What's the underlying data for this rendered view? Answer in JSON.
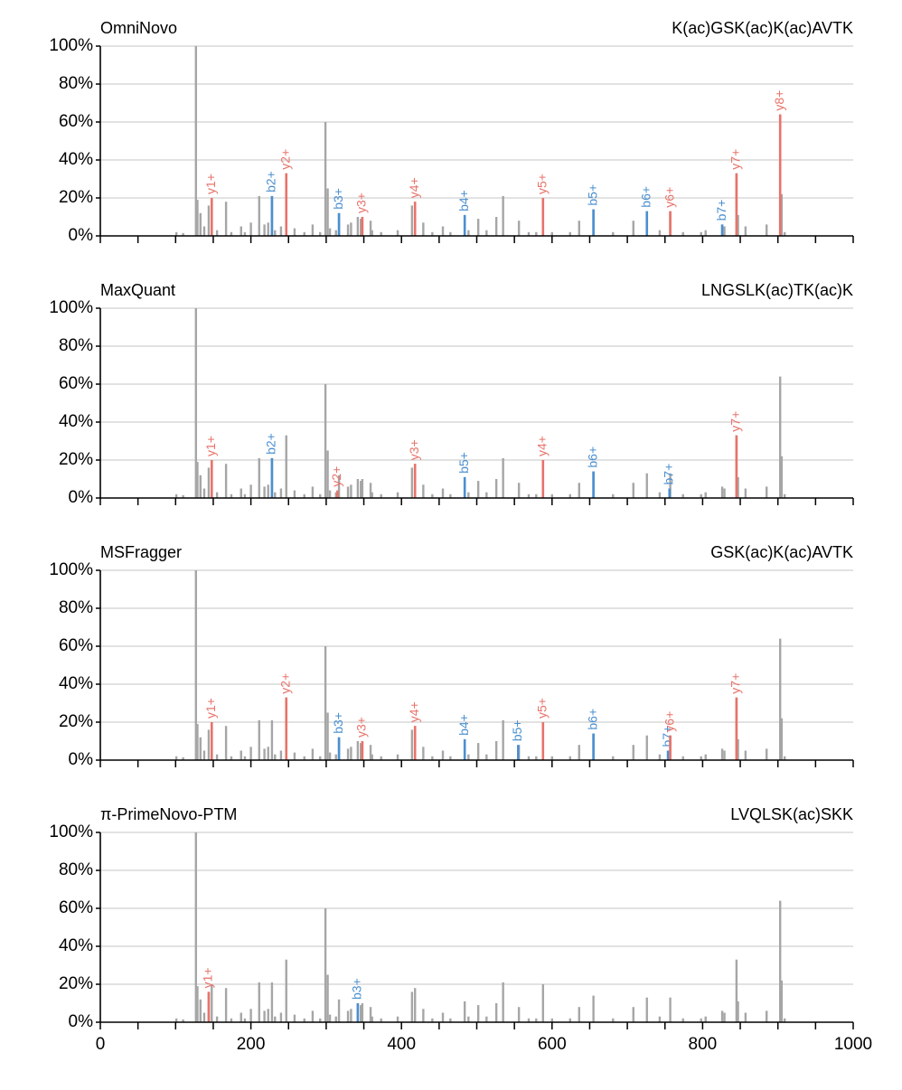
{
  "chart_data": [
    {
      "type": "bar",
      "title": "OmniNovo",
      "subtitle": "K(ac)GSK(ac)K(ac)AVTK",
      "xlim": [
        0,
        1000
      ],
      "ylim": [
        0,
        100
      ],
      "yticks": [
        {
          "value": 0,
          "label": "0%"
        },
        {
          "value": 20,
          "label": "20%"
        },
        {
          "value": 40,
          "label": "40%"
        },
        {
          "value": 60,
          "label": "60%"
        },
        {
          "value": 80,
          "label": "80%"
        },
        {
          "value": 100,
          "label": "100%"
        }
      ],
      "xticks": [
        0,
        200,
        400,
        600,
        800,
        1000
      ],
      "xminor": [
        50,
        100,
        150,
        250,
        300,
        350,
        450,
        500,
        550,
        650,
        700,
        750,
        850,
        900,
        950
      ],
      "xtick_labels": false,
      "grid": true,
      "color": "#a6a6a6",
      "x": [
        101,
        110,
        127,
        129,
        133,
        138,
        144,
        148,
        155,
        167,
        174,
        187,
        192,
        200,
        211,
        218,
        223,
        228,
        232,
        240,
        247,
        258,
        271,
        282,
        292,
        299,
        302,
        305,
        313,
        317,
        329,
        333,
        342,
        346,
        348,
        359,
        361,
        373,
        395,
        414,
        418,
        429,
        441,
        455,
        465,
        484,
        489,
        502,
        513,
        526,
        535,
        556,
        569,
        579,
        588,
        600,
        624,
        636,
        655,
        681,
        708,
        726,
        743,
        757,
        774,
        798,
        804,
        826,
        829,
        845,
        847,
        857,
        885,
        903,
        905,
        909
      ],
      "values": [
        2,
        1.5,
        100,
        19,
        12,
        5,
        16,
        20,
        3,
        18,
        2,
        5,
        2,
        7,
        21,
        6,
        7,
        21,
        3,
        5,
        33,
        4,
        2,
        6,
        2,
        60,
        25,
        4,
        3,
        12,
        6,
        7,
        10,
        9,
        10,
        8,
        3,
        2,
        3,
        16,
        18,
        7,
        2,
        5,
        2,
        11,
        3,
        9,
        3,
        10,
        21,
        8,
        2,
        2,
        20,
        2,
        2,
        8,
        14,
        2,
        8,
        13,
        3,
        13,
        2,
        2,
        3,
        6,
        5,
        33,
        11,
        5,
        6,
        64,
        22,
        2
      ],
      "annotations": [
        {
          "x": 148,
          "value": 20,
          "label": "y1+",
          "color": "#e8736a"
        },
        {
          "x": 228,
          "value": 21,
          "label": "b2+",
          "color": "#4a8fd0"
        },
        {
          "x": 247,
          "value": 33,
          "label": "y2+",
          "color": "#e8736a"
        },
        {
          "x": 317,
          "value": 12,
          "label": "b3+",
          "color": "#4a8fd0"
        },
        {
          "x": 348,
          "value": 10,
          "label": "y3+",
          "color": "#e8736a"
        },
        {
          "x": 418,
          "value": 18,
          "label": "y4+",
          "color": "#e8736a"
        },
        {
          "x": 484,
          "value": 11,
          "label": "b4+",
          "color": "#4a8fd0"
        },
        {
          "x": 588,
          "value": 20,
          "label": "y5+",
          "color": "#e8736a"
        },
        {
          "x": 655,
          "value": 14,
          "label": "b5+",
          "color": "#4a8fd0"
        },
        {
          "x": 726,
          "value": 13,
          "label": "b6+",
          "color": "#4a8fd0"
        },
        {
          "x": 757,
          "value": 13,
          "label": "y6+",
          "color": "#e8736a"
        },
        {
          "x": 826,
          "value": 6,
          "label": "b7+",
          "color": "#4a8fd0"
        },
        {
          "x": 845,
          "value": 33,
          "label": "y7+",
          "color": "#e8736a"
        },
        {
          "x": 903,
          "value": 64,
          "label": "y8+",
          "color": "#e8736a"
        }
      ]
    },
    {
      "type": "bar",
      "title": "MaxQuant",
      "subtitle": "LNGSLK(ac)TK(ac)K",
      "xlim": [
        0,
        1000
      ],
      "ylim": [
        0,
        100
      ],
      "yticks": [
        {
          "value": 0,
          "label": "0%"
        },
        {
          "value": 20,
          "label": "20%"
        },
        {
          "value": 40,
          "label": "40%"
        },
        {
          "value": 60,
          "label": "60%"
        },
        {
          "value": 80,
          "label": "80%"
        },
        {
          "value": 100,
          "label": "100%"
        }
      ],
      "xticks": [
        0,
        200,
        400,
        600,
        800,
        1000
      ],
      "xminor": [
        50,
        100,
        150,
        250,
        300,
        350,
        450,
        500,
        550,
        650,
        700,
        750,
        850,
        900,
        950
      ],
      "xtick_labels": false,
      "grid": true,
      "color": "#a6a6a6",
      "x": [
        101,
        110,
        127,
        129,
        133,
        138,
        144,
        148,
        155,
        167,
        174,
        187,
        192,
        200,
        211,
        218,
        223,
        228,
        232,
        240,
        247,
        258,
        271,
        282,
        292,
        299,
        302,
        305,
        313,
        317,
        329,
        333,
        342,
        346,
        348,
        359,
        361,
        373,
        395,
        414,
        418,
        429,
        441,
        455,
        465,
        484,
        489,
        502,
        513,
        526,
        535,
        556,
        569,
        579,
        588,
        600,
        624,
        636,
        655,
        681,
        708,
        726,
        743,
        757,
        774,
        798,
        804,
        826,
        829,
        845,
        847,
        857,
        885,
        903,
        905,
        909
      ],
      "values": [
        2,
        1.5,
        100,
        19,
        12,
        5,
        16,
        20,
        3,
        18,
        2,
        5,
        2,
        7,
        21,
        6,
        7,
        21,
        3,
        5,
        33,
        4,
        2,
        6,
        2,
        60,
        25,
        4,
        3,
        12,
        6,
        7,
        10,
        9,
        10,
        8,
        3,
        2,
        3,
        16,
        18,
        7,
        2,
        5,
        2,
        11,
        3,
        9,
        3,
        10,
        21,
        8,
        2,
        2,
        20,
        2,
        2,
        8,
        14,
        2,
        8,
        13,
        3,
        13,
        2,
        2,
        3,
        6,
        5,
        33,
        11,
        5,
        6,
        64,
        22,
        2
      ],
      "annotations": [
        {
          "x": 148,
          "value": 20,
          "label": "y1+",
          "color": "#e8736a"
        },
        {
          "x": 228,
          "value": 21,
          "label": "b2+",
          "color": "#4a8fd0"
        },
        {
          "x": 315,
          "value": 4,
          "label": "y2+",
          "color": "#e8736a"
        },
        {
          "x": 418,
          "value": 18,
          "label": "y3+",
          "color": "#e8736a"
        },
        {
          "x": 484,
          "value": 11,
          "label": "b5+",
          "color": "#4a8fd0"
        },
        {
          "x": 588,
          "value": 20,
          "label": "y4+",
          "color": "#e8736a"
        },
        {
          "x": 655,
          "value": 14,
          "label": "b6+",
          "color": "#4a8fd0"
        },
        {
          "x": 756,
          "value": 5,
          "label": "b7+",
          "color": "#4a8fd0"
        },
        {
          "x": 845,
          "value": 33,
          "label": "y7+",
          "color": "#e8736a"
        }
      ]
    },
    {
      "type": "bar",
      "title": "MSFragger",
      "subtitle": "GSK(ac)K(ac)AVTK",
      "xlim": [
        0,
        1000
      ],
      "ylim": [
        0,
        100
      ],
      "yticks": [
        {
          "value": 0,
          "label": "0%"
        },
        {
          "value": 20,
          "label": "20%"
        },
        {
          "value": 40,
          "label": "40%"
        },
        {
          "value": 60,
          "label": "60%"
        },
        {
          "value": 80,
          "label": "80%"
        },
        {
          "value": 100,
          "label": "100%"
        }
      ],
      "xticks": [
        0,
        200,
        400,
        600,
        800,
        1000
      ],
      "xminor": [
        50,
        100,
        150,
        250,
        300,
        350,
        450,
        500,
        550,
        650,
        700,
        750,
        850,
        900,
        950
      ],
      "xtick_labels": false,
      "grid": true,
      "color": "#a6a6a6",
      "x": [
        101,
        110,
        127,
        129,
        133,
        138,
        144,
        148,
        155,
        167,
        174,
        187,
        192,
        200,
        211,
        218,
        223,
        228,
        232,
        240,
        247,
        258,
        271,
        282,
        292,
        299,
        302,
        305,
        313,
        317,
        329,
        333,
        342,
        346,
        348,
        359,
        361,
        373,
        395,
        414,
        418,
        429,
        441,
        455,
        465,
        484,
        489,
        502,
        513,
        526,
        535,
        556,
        569,
        579,
        588,
        600,
        624,
        636,
        655,
        681,
        708,
        726,
        743,
        757,
        774,
        798,
        804,
        826,
        829,
        845,
        847,
        857,
        885,
        903,
        905,
        909
      ],
      "values": [
        2,
        1.5,
        100,
        19,
        12,
        5,
        16,
        20,
        3,
        18,
        2,
        5,
        2,
        7,
        21,
        6,
        7,
        21,
        3,
        5,
        33,
        4,
        2,
        6,
        2,
        60,
        25,
        4,
        3,
        12,
        6,
        7,
        10,
        9,
        10,
        8,
        3,
        2,
        3,
        16,
        18,
        7,
        2,
        5,
        2,
        11,
        3,
        9,
        3,
        10,
        21,
        8,
        2,
        2,
        20,
        2,
        2,
        8,
        14,
        2,
        8,
        13,
        3,
        13,
        2,
        2,
        3,
        6,
        5,
        33,
        11,
        5,
        6,
        64,
        22,
        2
      ],
      "annotations": [
        {
          "x": 148,
          "value": 20,
          "label": "y1+",
          "color": "#e8736a"
        },
        {
          "x": 247,
          "value": 33,
          "label": "y2+",
          "color": "#e8736a"
        },
        {
          "x": 317,
          "value": 12,
          "label": "b3+",
          "color": "#4a8fd0"
        },
        {
          "x": 348,
          "value": 10,
          "label": "y3+",
          "color": "#e8736a"
        },
        {
          "x": 418,
          "value": 18,
          "label": "y4+",
          "color": "#e8736a"
        },
        {
          "x": 484,
          "value": 11,
          "label": "b4+",
          "color": "#4a8fd0"
        },
        {
          "x": 555,
          "value": 8,
          "label": "b5+",
          "color": "#4a8fd0"
        },
        {
          "x": 588,
          "value": 20,
          "label": "y5+",
          "color": "#e8736a"
        },
        {
          "x": 655,
          "value": 14,
          "label": "b6+",
          "color": "#4a8fd0"
        },
        {
          "x": 754,
          "value": 5,
          "label": "b7+",
          "color": "#4a8fd0"
        },
        {
          "x": 757,
          "value": 13,
          "label": "y6+",
          "color": "#e8736a"
        },
        {
          "x": 845,
          "value": 33,
          "label": "y7+",
          "color": "#e8736a"
        }
      ]
    },
    {
      "type": "bar",
      "title": "π-PrimeNovo-PTM",
      "subtitle": "LVQLSK(ac)SKK",
      "xlim": [
        0,
        1000
      ],
      "ylim": [
        0,
        100
      ],
      "yticks": [
        {
          "value": 0,
          "label": "0%"
        },
        {
          "value": 20,
          "label": "20%"
        },
        {
          "value": 40,
          "label": "40%"
        },
        {
          "value": 60,
          "label": "60%"
        },
        {
          "value": 80,
          "label": "80%"
        },
        {
          "value": 100,
          "label": "100%"
        }
      ],
      "xticks": [
        0,
        200,
        400,
        600,
        800,
        1000
      ],
      "xminor": [
        50,
        100,
        150,
        250,
        300,
        350,
        450,
        500,
        550,
        650,
        700,
        750,
        850,
        900,
        950
      ],
      "xtick_labels": true,
      "grid": true,
      "color": "#a6a6a6",
      "x": [
        101,
        110,
        127,
        129,
        133,
        138,
        144,
        148,
        155,
        167,
        174,
        187,
        192,
        200,
        211,
        218,
        223,
        228,
        232,
        240,
        247,
        258,
        271,
        282,
        292,
        299,
        302,
        305,
        313,
        317,
        329,
        333,
        342,
        346,
        348,
        359,
        361,
        373,
        395,
        414,
        418,
        429,
        441,
        455,
        465,
        484,
        489,
        502,
        513,
        526,
        535,
        556,
        569,
        579,
        588,
        600,
        624,
        636,
        655,
        681,
        708,
        726,
        743,
        757,
        774,
        798,
        804,
        826,
        829,
        845,
        847,
        857,
        885,
        903,
        905,
        909
      ],
      "values": [
        2,
        1.5,
        100,
        19,
        12,
        5,
        16,
        20,
        3,
        18,
        2,
        5,
        2,
        7,
        21,
        6,
        7,
        21,
        3,
        5,
        33,
        4,
        2,
        6,
        2,
        60,
        25,
        4,
        3,
        12,
        6,
        7,
        10,
        9,
        10,
        8,
        3,
        2,
        3,
        16,
        18,
        7,
        2,
        5,
        2,
        11,
        3,
        9,
        3,
        10,
        21,
        8,
        2,
        2,
        20,
        2,
        2,
        8,
        14,
        2,
        8,
        13,
        3,
        13,
        2,
        2,
        3,
        6,
        5,
        33,
        11,
        5,
        6,
        64,
        22,
        2
      ],
      "annotations": [
        {
          "x": 144,
          "value": 16,
          "label": "y1+",
          "color": "#e8736a"
        },
        {
          "x": 342,
          "value": 10,
          "label": "b3+",
          "color": "#4a8fd0"
        }
      ]
    }
  ]
}
